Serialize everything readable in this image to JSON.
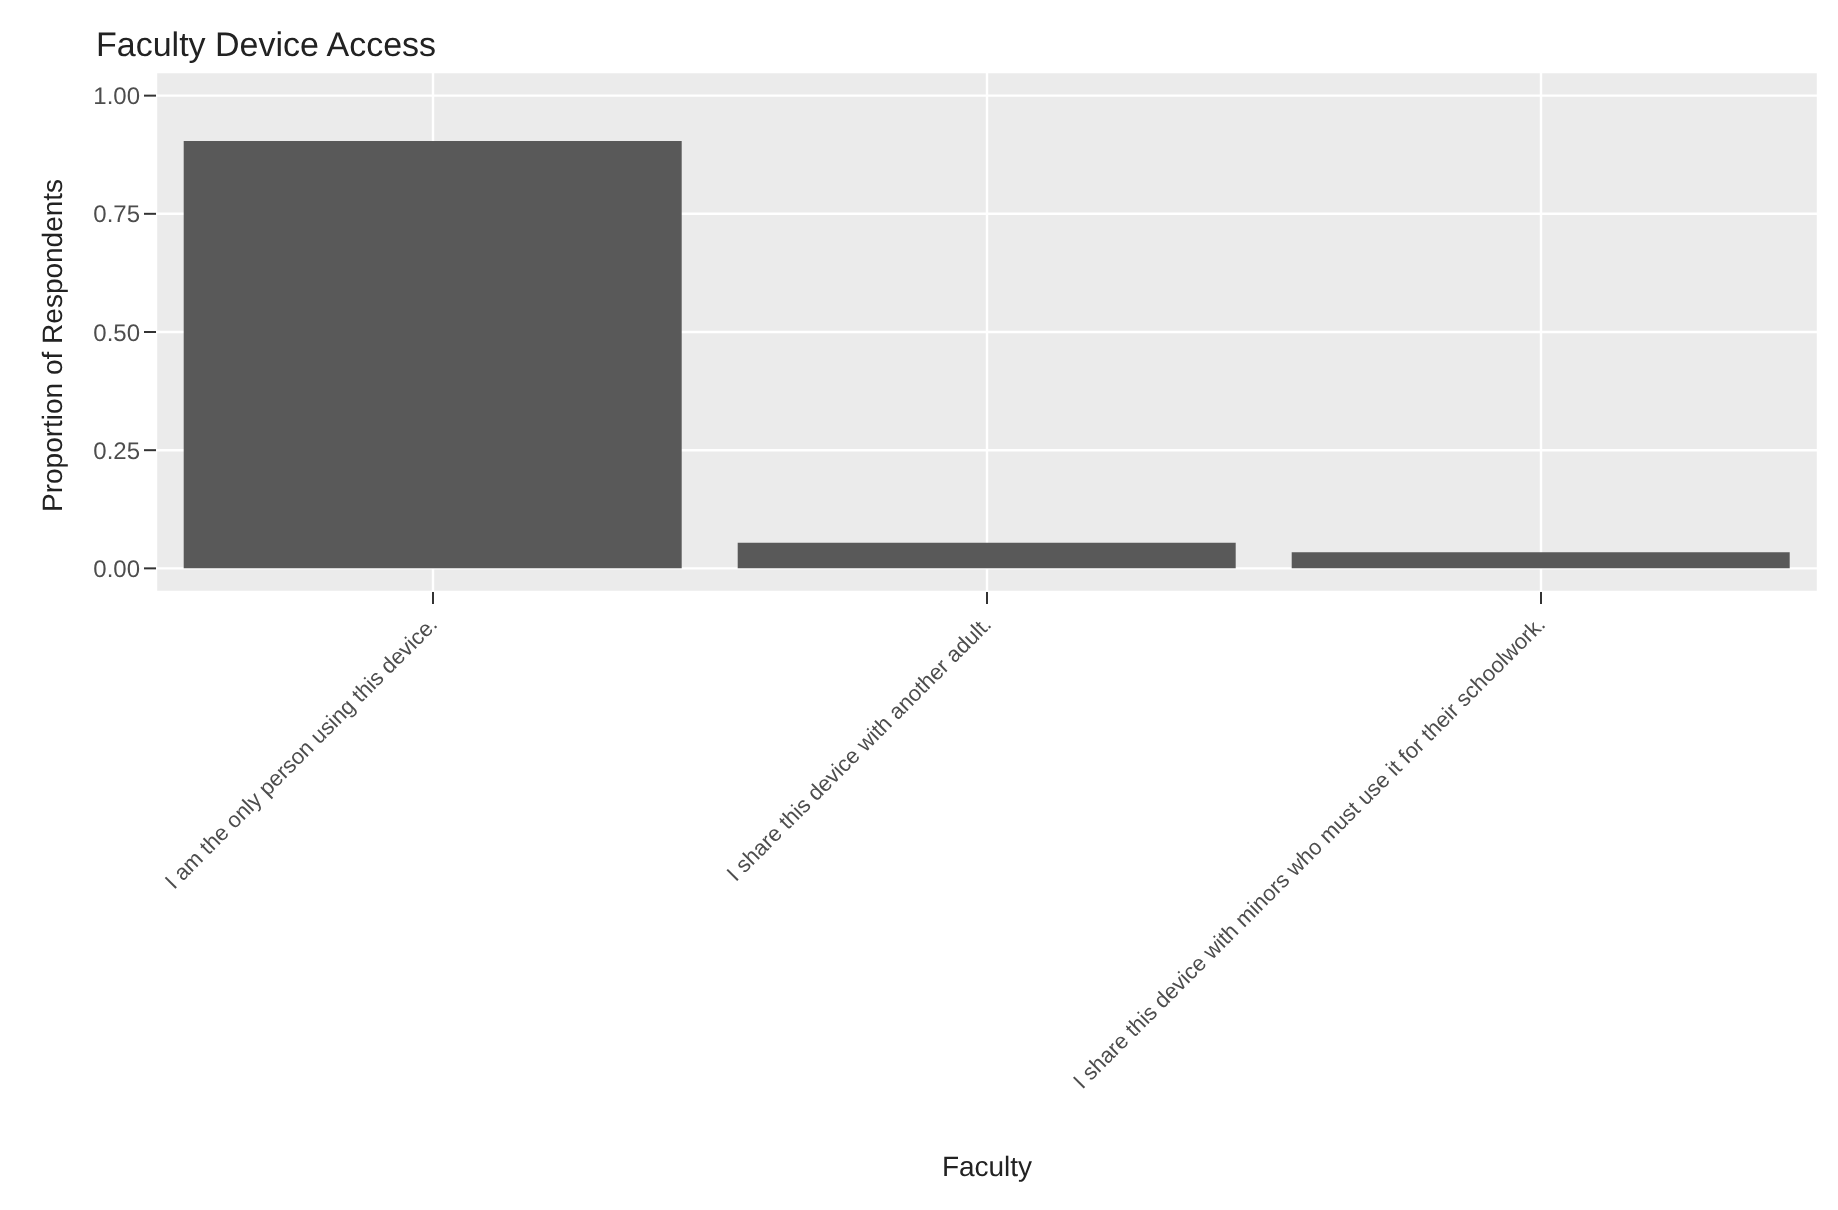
{
  "chart_data": {
    "type": "bar",
    "title": "Faculty Device Access",
    "xlabel": "Faculty",
    "ylabel": "Proportion of Respondents",
    "categories": [
      "I am the only person using this device.",
      "I share this device with another adult.",
      "I share this device with minors who must use it for their schoolwork."
    ],
    "values": [
      0.904,
      0.054,
      0.034
    ],
    "color": "#595959",
    "ylim": [
      -0.05,
      1.05
    ],
    "yticks": [
      {
        "value": 0,
        "label": "0.00"
      },
      {
        "value": 0.25,
        "label": "0.25"
      },
      {
        "value": 0.5,
        "label": "0.50"
      },
      {
        "value": 0.75,
        "label": "0.75"
      },
      {
        "value": 1,
        "label": "1.00"
      }
    ],
    "grid": true
  }
}
